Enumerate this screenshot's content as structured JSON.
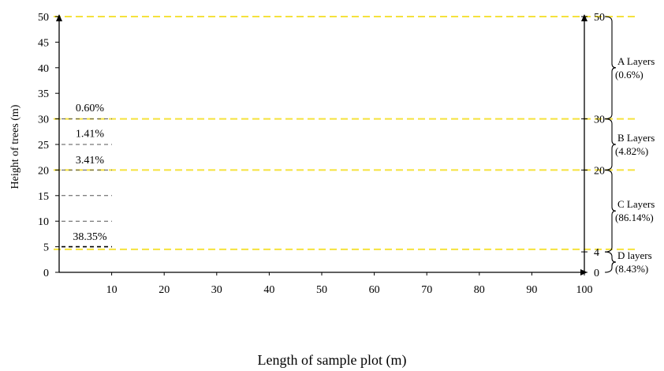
{
  "chart_data": {
    "type": "line",
    "title": "",
    "xlabel": "Length of sample plot (m)",
    "ylabel": "Height of trees (m)",
    "xlim": [
      0,
      100
    ],
    "ylim": [
      0,
      50
    ],
    "x_ticks": [
      10,
      20,
      30,
      40,
      50,
      60,
      70,
      80,
      90,
      100
    ],
    "y_ticks": [
      0,
      5,
      10,
      15,
      20,
      25,
      30,
      35,
      40,
      45,
      50
    ],
    "right_axis_ticks": [
      0,
      4,
      20,
      30,
      50
    ],
    "yellow_boundaries": [
      4.5,
      20,
      30,
      50
    ],
    "colors": {
      "boundary": "#f5e23c",
      "axis": "#000000"
    },
    "short_dashes": [
      {
        "y": 5,
        "color": "#000000"
      },
      {
        "y": 10,
        "color": "#555555"
      },
      {
        "y": 15,
        "color": "#555555"
      },
      {
        "y": 20,
        "color": "#555555"
      },
      {
        "y": 25,
        "color": "#555555"
      },
      {
        "y": 30,
        "color": "#555555"
      }
    ],
    "percent_labels": [
      {
        "text": "0.60%",
        "y": 31.5
      },
      {
        "text": "1.41%",
        "y": 26.5
      },
      {
        "text": "3.41%",
        "y": 21.3
      },
      {
        "text": "38.35%",
        "y": 6.3
      }
    ],
    "layers": [
      {
        "name": "A Layers",
        "share": "(0.6%)",
        "from": 30,
        "to": 50
      },
      {
        "name": "B Layers",
        "share": "(4.82%)",
        "from": 20,
        "to": 30
      },
      {
        "name": "C Layers",
        "share": "(86.14%)",
        "from": 4,
        "to": 20
      },
      {
        "name": "D layers",
        "share": "(8.43%)",
        "from": 0,
        "to": 4
      }
    ]
  }
}
